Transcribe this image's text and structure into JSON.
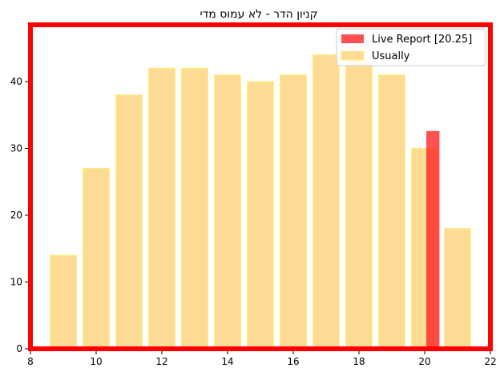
{
  "chart_data": {
    "type": "bar",
    "title": "קניון הדר - לא עמוס מדי",
    "xlabel": "",
    "ylabel": "",
    "xlim": [
      8,
      22
    ],
    "ylim": [
      0,
      48.5
    ],
    "x_ticks": [
      8,
      10,
      12,
      14,
      16,
      18,
      20,
      22
    ],
    "y_ticks": [
      0,
      10,
      20,
      30,
      40
    ],
    "grid": false,
    "legend_placement": "top-right",
    "series": [
      {
        "name": "Live Report [20.25]",
        "color": "#ff2b2b",
        "x": [
          20.25
        ],
        "values": [
          32.6
        ]
      },
      {
        "name": "Usually",
        "color": "#fddb94",
        "edge_color": "#ffef80",
        "x": [
          9,
          10,
          11,
          12,
          13,
          14,
          15,
          16,
          17,
          18,
          19,
          20,
          21
        ],
        "values": [
          14,
          27,
          38,
          42,
          42,
          41,
          40,
          41,
          44,
          43,
          41,
          30,
          18
        ]
      }
    ],
    "frame_color": "#ff0000"
  }
}
